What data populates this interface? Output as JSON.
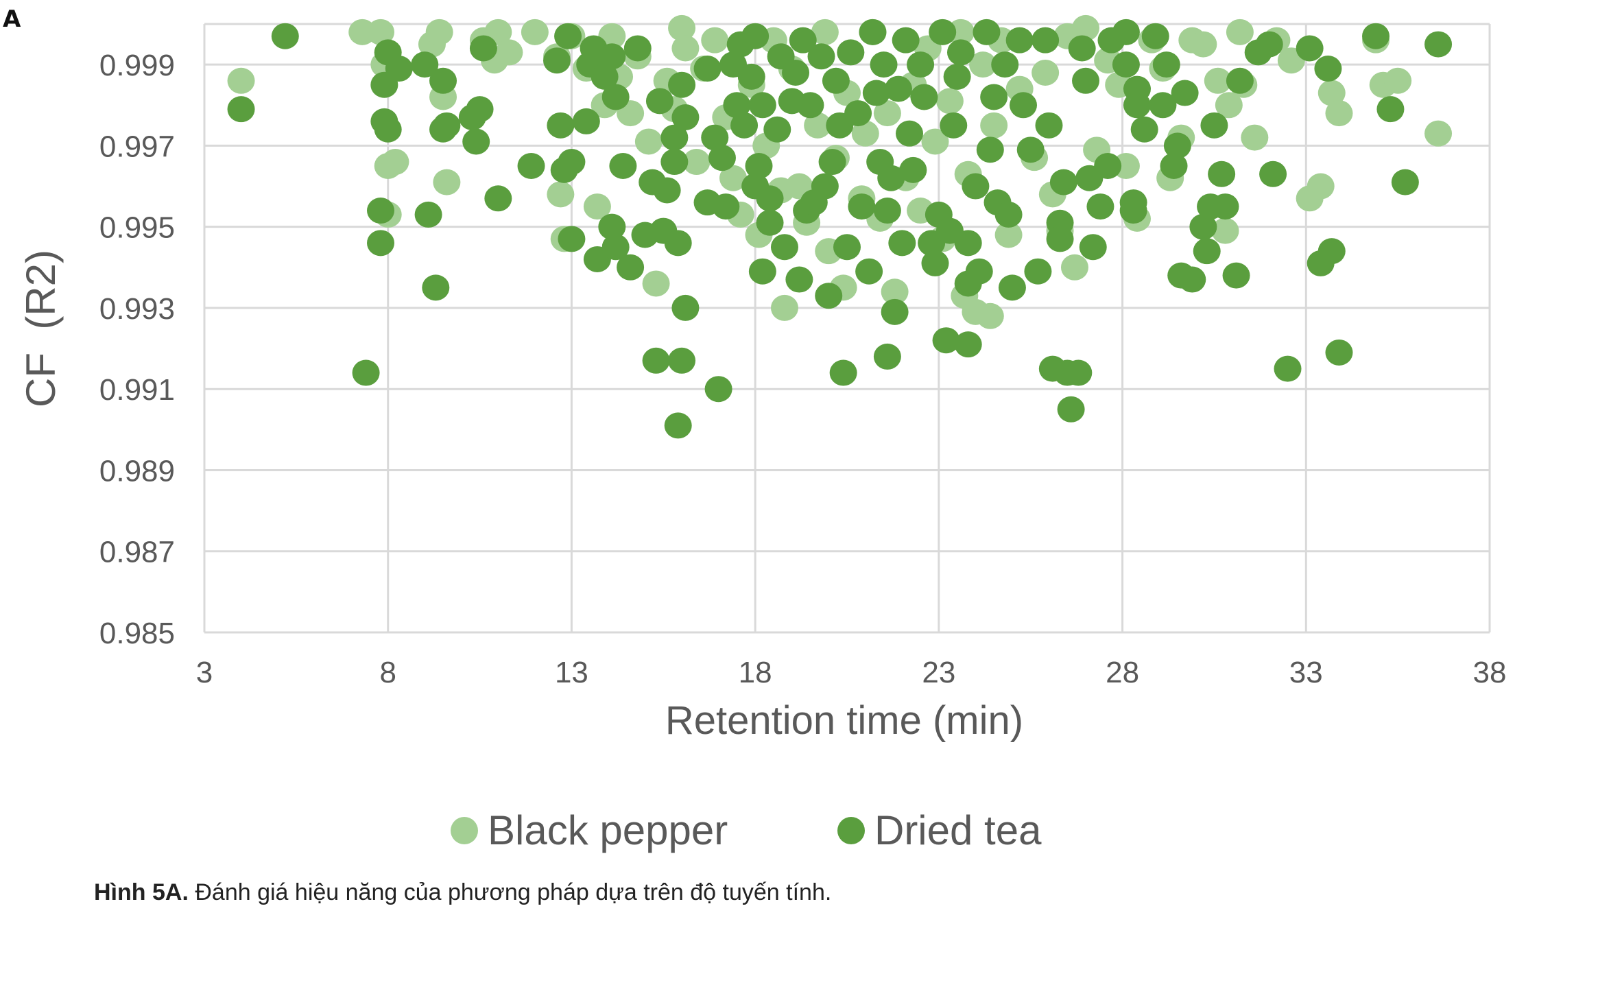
{
  "panel_label": "A",
  "caption": {
    "label": "Hình 5A.",
    "text": "Đánh giá hiệu năng của phương pháp  dựa trên độ tuyến tính."
  },
  "colors": {
    "black_pepper": "#a3cf93",
    "dried_tea": "#5a9e3e",
    "grid": "#d9d9d9",
    "axis_text": "#595959"
  },
  "chart_data": {
    "type": "scatter",
    "xlabel": "Retention time (min)",
    "ylabel": "CF  (R2)",
    "xlim": [
      3,
      38
    ],
    "ylim": [
      0.985,
      1.0
    ],
    "x_ticks": [
      "3",
      "8",
      "13",
      "18",
      "23",
      "28",
      "33",
      "38"
    ],
    "y_ticks": [
      "0.985",
      "0.987",
      "0.989",
      "0.991",
      "0.993",
      "0.995",
      "0.997",
      "0.999"
    ],
    "grid": "horizontal and vertical",
    "legend_position": "bottom",
    "series": [
      {
        "name": "Black pepper",
        "color": "#a3cf93",
        "points": [
          [
            4.0,
            0.9986
          ],
          [
            7.3,
            0.9998
          ],
          [
            7.8,
            0.9998
          ],
          [
            7.9,
            0.999
          ],
          [
            8.0,
            0.9965
          ],
          [
            8.2,
            0.9966
          ],
          [
            8.0,
            0.9953
          ],
          [
            9.2,
            0.9995
          ],
          [
            9.4,
            0.9998
          ],
          [
            9.5,
            0.9982
          ],
          [
            9.6,
            0.9961
          ],
          [
            10.6,
            0.9996
          ],
          [
            10.9,
            0.9991
          ],
          [
            11.0,
            0.9998
          ],
          [
            11.3,
            0.9993
          ],
          [
            12.0,
            0.9998
          ],
          [
            12.6,
            0.9992
          ],
          [
            12.7,
            0.9958
          ],
          [
            12.8,
            0.9947
          ],
          [
            13.0,
            0.9997
          ],
          [
            13.4,
            0.9989
          ],
          [
            13.7,
            0.9955
          ],
          [
            13.9,
            0.998
          ],
          [
            14.1,
            0.9997
          ],
          [
            14.3,
            0.9987
          ],
          [
            14.6,
            0.9978
          ],
          [
            14.8,
            0.9992
          ],
          [
            15.1,
            0.9971
          ],
          [
            15.3,
            0.9936
          ],
          [
            15.6,
            0.9986
          ],
          [
            15.8,
            0.9979
          ],
          [
            16.0,
            0.9999
          ],
          [
            16.1,
            0.9994
          ],
          [
            16.4,
            0.9966
          ],
          [
            16.6,
            0.9989
          ],
          [
            16.9,
            0.9996
          ],
          [
            17.2,
            0.9977
          ],
          [
            17.4,
            0.9962
          ],
          [
            17.6,
            0.9953
          ],
          [
            17.9,
            0.9985
          ],
          [
            18.1,
            0.9948
          ],
          [
            18.3,
            0.997
          ],
          [
            18.5,
            0.9996
          ],
          [
            18.7,
            0.9959
          ],
          [
            18.8,
            0.993
          ],
          [
            19.0,
            0.9989
          ],
          [
            19.2,
            0.996
          ],
          [
            19.4,
            0.9951
          ],
          [
            19.7,
            0.9975
          ],
          [
            19.9,
            0.9998
          ],
          [
            20.0,
            0.9944
          ],
          [
            20.2,
            0.9967
          ],
          [
            20.4,
            0.9935
          ],
          [
            20.5,
            0.9983
          ],
          [
            20.9,
            0.9957
          ],
          [
            21.0,
            0.9973
          ],
          [
            21.2,
            0.9998
          ],
          [
            21.4,
            0.9952
          ],
          [
            21.6,
            0.9978
          ],
          [
            21.8,
            0.9934
          ],
          [
            22.1,
            0.9962
          ],
          [
            22.3,
            0.9985
          ],
          [
            22.5,
            0.9954
          ],
          [
            22.7,
            0.9994
          ],
          [
            22.9,
            0.9971
          ],
          [
            23.1,
            0.9947
          ],
          [
            23.3,
            0.9981
          ],
          [
            23.6,
            0.9998
          ],
          [
            23.7,
            0.9933
          ],
          [
            23.8,
            0.9963
          ],
          [
            24.0,
            0.9929
          ],
          [
            24.2,
            0.999
          ],
          [
            24.4,
            0.9928
          ],
          [
            24.5,
            0.9975
          ],
          [
            24.7,
            0.9996
          ],
          [
            24.9,
            0.9948
          ],
          [
            25.2,
            0.9984
          ],
          [
            25.6,
            0.9967
          ],
          [
            25.9,
            0.9988
          ],
          [
            26.1,
            0.9958
          ],
          [
            26.3,
            0.9949
          ],
          [
            26.5,
            0.9997
          ],
          [
            26.7,
            0.994
          ],
          [
            27.0,
            0.9999
          ],
          [
            27.3,
            0.9969
          ],
          [
            27.6,
            0.9991
          ],
          [
            27.9,
            0.9985
          ],
          [
            28.1,
            0.9965
          ],
          [
            28.4,
            0.9952
          ],
          [
            28.8,
            0.9996
          ],
          [
            29.1,
            0.9989
          ],
          [
            29.3,
            0.9962
          ],
          [
            29.6,
            0.9972
          ],
          [
            29.9,
            0.9996
          ],
          [
            30.2,
            0.9995
          ],
          [
            30.6,
            0.9986
          ],
          [
            30.8,
            0.9949
          ],
          [
            30.9,
            0.998
          ],
          [
            31.2,
            0.9998
          ],
          [
            31.3,
            0.9985
          ],
          [
            31.6,
            0.9972
          ],
          [
            32.2,
            0.9996
          ],
          [
            32.6,
            0.9991
          ],
          [
            33.1,
            0.9957
          ],
          [
            33.4,
            0.996
          ],
          [
            33.7,
            0.9983
          ],
          [
            33.9,
            0.9978
          ],
          [
            34.9,
            0.9996
          ],
          [
            35.1,
            0.9985
          ],
          [
            35.5,
            0.9986
          ],
          [
            36.6,
            0.9973
          ]
        ]
      },
      {
        "name": "Dried tea",
        "color": "#5a9e3e",
        "points": [
          [
            4.0,
            0.9979
          ],
          [
            5.2,
            0.9997
          ],
          [
            7.4,
            0.9914
          ],
          [
            7.8,
            0.9954
          ],
          [
            7.8,
            0.9946
          ],
          [
            7.9,
            0.9976
          ],
          [
            7.9,
            0.9985
          ],
          [
            8.0,
            0.9993
          ],
          [
            8.0,
            0.9974
          ],
          [
            8.3,
            0.9989
          ],
          [
            9.0,
            0.999
          ],
          [
            9.1,
            0.9953
          ],
          [
            9.3,
            0.9935
          ],
          [
            9.5,
            0.9986
          ],
          [
            9.5,
            0.9974
          ],
          [
            9.6,
            0.9975
          ],
          [
            10.3,
            0.9977
          ],
          [
            10.4,
            0.9971
          ],
          [
            10.5,
            0.9979
          ],
          [
            10.6,
            0.9994
          ],
          [
            11.0,
            0.9957
          ],
          [
            11.9,
            0.9965
          ],
          [
            12.6,
            0.9991
          ],
          [
            12.7,
            0.9975
          ],
          [
            12.8,
            0.9964
          ],
          [
            12.9,
            0.9997
          ],
          [
            13.0,
            0.9966
          ],
          [
            13.0,
            0.9947
          ],
          [
            13.4,
            0.9976
          ],
          [
            13.5,
            0.999
          ],
          [
            13.6,
            0.9994
          ],
          [
            13.7,
            0.9942
          ],
          [
            13.9,
            0.9987
          ],
          [
            14.1,
            0.9992
          ],
          [
            14.2,
            0.9982
          ],
          [
            14.1,
            0.995
          ],
          [
            14.2,
            0.9945
          ],
          [
            14.4,
            0.9965
          ],
          [
            14.6,
            0.994
          ],
          [
            14.8,
            0.9994
          ],
          [
            15.0,
            0.9948
          ],
          [
            15.2,
            0.9961
          ],
          [
            15.3,
            0.9917
          ],
          [
            15.4,
            0.9981
          ],
          [
            15.5,
            0.9949
          ],
          [
            15.6,
            0.9959
          ],
          [
            15.9,
            0.9901
          ],
          [
            15.9,
            0.9946
          ],
          [
            15.8,
            0.9966
          ],
          [
            15.8,
            0.9972
          ],
          [
            16.0,
            0.9917
          ],
          [
            16.0,
            0.9985
          ],
          [
            16.1,
            0.9977
          ],
          [
            16.1,
            0.993
          ],
          [
            16.7,
            0.9956
          ],
          [
            16.7,
            0.9989
          ],
          [
            16.9,
            0.9972
          ],
          [
            17.0,
            0.991
          ],
          [
            17.1,
            0.9967
          ],
          [
            17.2,
            0.9955
          ],
          [
            17.4,
            0.999
          ],
          [
            17.5,
            0.998
          ],
          [
            17.6,
            0.9995
          ],
          [
            17.7,
            0.9975
          ],
          [
            17.9,
            0.9987
          ],
          [
            18.0,
            0.9997
          ],
          [
            18.0,
            0.996
          ],
          [
            18.1,
            0.9965
          ],
          [
            18.2,
            0.998
          ],
          [
            18.2,
            0.9939
          ],
          [
            18.4,
            0.9957
          ],
          [
            18.4,
            0.9951
          ],
          [
            18.6,
            0.9974
          ],
          [
            18.7,
            0.9992
          ],
          [
            18.8,
            0.9945
          ],
          [
            19.0,
            0.9981
          ],
          [
            19.1,
            0.9988
          ],
          [
            19.2,
            0.9937
          ],
          [
            19.3,
            0.9996
          ],
          [
            19.4,
            0.9954
          ],
          [
            19.5,
            0.998
          ],
          [
            19.6,
            0.9956
          ],
          [
            19.8,
            0.9992
          ],
          [
            19.9,
            0.996
          ],
          [
            20.0,
            0.9933
          ],
          [
            20.1,
            0.9966
          ],
          [
            20.2,
            0.9986
          ],
          [
            20.3,
            0.9975
          ],
          [
            20.4,
            0.9914
          ],
          [
            20.5,
            0.9945
          ],
          [
            20.6,
            0.9993
          ],
          [
            20.8,
            0.9978
          ],
          [
            20.9,
            0.9955
          ],
          [
            21.1,
            0.9939
          ],
          [
            21.2,
            0.9998
          ],
          [
            21.3,
            0.9983
          ],
          [
            21.4,
            0.9966
          ],
          [
            21.5,
            0.999
          ],
          [
            21.6,
            0.9918
          ],
          [
            21.6,
            0.9954
          ],
          [
            21.7,
            0.9962
          ],
          [
            21.8,
            0.9929
          ],
          [
            21.9,
            0.9984
          ],
          [
            22.0,
            0.9946
          ],
          [
            22.1,
            0.9996
          ],
          [
            22.2,
            0.9973
          ],
          [
            22.3,
            0.9964
          ],
          [
            22.5,
            0.999
          ],
          [
            22.6,
            0.9982
          ],
          [
            22.8,
            0.9946
          ],
          [
            22.9,
            0.9941
          ],
          [
            23.0,
            0.9953
          ],
          [
            23.1,
            0.9998
          ],
          [
            23.2,
            0.9922
          ],
          [
            23.3,
            0.9949
          ],
          [
            23.4,
            0.9975
          ],
          [
            23.5,
            0.9987
          ],
          [
            23.6,
            0.9993
          ],
          [
            23.8,
            0.9921
          ],
          [
            23.8,
            0.9946
          ],
          [
            23.8,
            0.9936
          ],
          [
            24.0,
            0.996
          ],
          [
            24.1,
            0.9939
          ],
          [
            24.3,
            0.9998
          ],
          [
            24.4,
            0.9969
          ],
          [
            24.5,
            0.9982
          ],
          [
            24.6,
            0.9956
          ],
          [
            24.8,
            0.999
          ],
          [
            24.9,
            0.9953
          ],
          [
            25.0,
            0.9935
          ],
          [
            25.2,
            0.9996
          ],
          [
            25.3,
            0.998
          ],
          [
            25.5,
            0.9969
          ],
          [
            25.7,
            0.9939
          ],
          [
            25.9,
            0.9996
          ],
          [
            26.0,
            0.9975
          ],
          [
            26.1,
            0.9915
          ],
          [
            26.3,
            0.9951
          ],
          [
            26.3,
            0.9947
          ],
          [
            26.4,
            0.9961
          ],
          [
            26.5,
            0.9914
          ],
          [
            26.6,
            0.9905
          ],
          [
            26.8,
            0.9914
          ],
          [
            26.9,
            0.9994
          ],
          [
            27.0,
            0.9986
          ],
          [
            27.1,
            0.9962
          ],
          [
            27.2,
            0.9945
          ],
          [
            27.4,
            0.9955
          ],
          [
            27.6,
            0.9965
          ],
          [
            27.7,
            0.9996
          ],
          [
            28.1,
            0.999
          ],
          [
            28.1,
            0.9998
          ],
          [
            28.3,
            0.9956
          ],
          [
            28.3,
            0.9954
          ],
          [
            28.4,
            0.9984
          ],
          [
            28.4,
            0.998
          ],
          [
            28.6,
            0.9974
          ],
          [
            28.9,
            0.9997
          ],
          [
            29.1,
            0.998
          ],
          [
            29.2,
            0.999
          ],
          [
            29.4,
            0.9965
          ],
          [
            29.5,
            0.997
          ],
          [
            29.6,
            0.9938
          ],
          [
            29.7,
            0.9983
          ],
          [
            29.9,
            0.9937
          ],
          [
            30.2,
            0.995
          ],
          [
            30.3,
            0.9944
          ],
          [
            30.4,
            0.9955
          ],
          [
            30.5,
            0.9975
          ],
          [
            30.7,
            0.9963
          ],
          [
            30.8,
            0.9955
          ],
          [
            31.1,
            0.9938
          ],
          [
            31.2,
            0.9986
          ],
          [
            31.7,
            0.9993
          ],
          [
            32.0,
            0.9995
          ],
          [
            32.1,
            0.9963
          ],
          [
            32.5,
            0.9915
          ],
          [
            33.1,
            0.9994
          ],
          [
            33.4,
            0.9941
          ],
          [
            33.6,
            0.9989
          ],
          [
            33.7,
            0.9944
          ],
          [
            33.9,
            0.9919
          ],
          [
            34.9,
            0.9997
          ],
          [
            35.3,
            0.9979
          ],
          [
            35.7,
            0.9961
          ],
          [
            36.6,
            0.9995
          ]
        ]
      }
    ]
  }
}
